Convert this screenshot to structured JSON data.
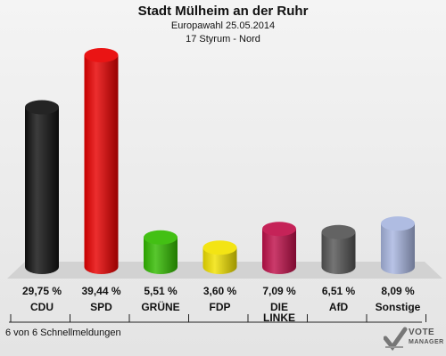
{
  "header": {
    "title": "Stadt Mülheim an der Ruhr",
    "subtitle_1": "Europawahl 25.05.2014",
    "subtitle_2": "17 Styrum - Nord"
  },
  "footer": {
    "status": "6 von 6 Schnellmeldungen"
  },
  "logo": {
    "line1": "VOTE",
    "line2": "MANAGER"
  },
  "chart_data": {
    "type": "bar",
    "title": "Stadt Mülheim an der Ruhr",
    "categories": [
      "CDU",
      "SPD",
      "GRÜNE",
      "FDP",
      "DIE LINKE",
      "AfD",
      "Sonstige"
    ],
    "values": [
      29.75,
      39.44,
      5.51,
      3.6,
      7.09,
      6.51,
      8.09
    ],
    "value_labels": [
      "29,75 %",
      "39,44 %",
      "5,51 %",
      "3,60 %",
      "7,09 %",
      "6,51 %",
      "8,09 %"
    ],
    "colors": [
      "#111111",
      "#e80000",
      "#33bb00",
      "#f2e200",
      "#c0104a",
      "#555555",
      "#a8b6e0"
    ],
    "ylim": [
      0,
      39.44
    ],
    "grid": false,
    "legend": "none"
  }
}
